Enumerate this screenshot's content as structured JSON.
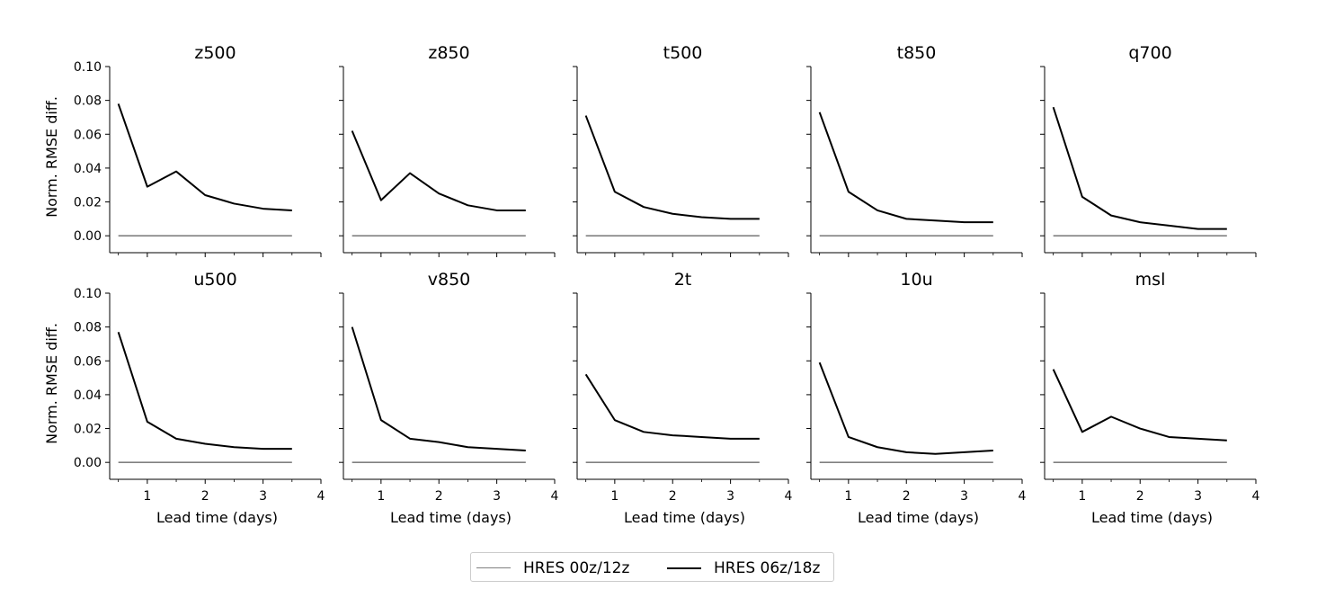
{
  "chart_data": {
    "type": "line",
    "layout": "2x5 small multiples",
    "shared_y_axis": true,
    "ylabel": "Norm. RMSE diff.",
    "xlabel": "Lead time (days)",
    "xlim": [
      0.35,
      4.0
    ],
    "ylim": [
      -0.01,
      0.1
    ],
    "xticks": [
      "1",
      "2",
      "3",
      "4"
    ],
    "yticks": [
      "0.00",
      "0.02",
      "0.04",
      "0.06",
      "0.08",
      "0.10"
    ],
    "x": [
      0.5,
      1.0,
      1.5,
      2.0,
      2.5,
      3.0,
      3.5
    ],
    "legend": {
      "placement": "bottom-center",
      "entries": [
        {
          "name": "HRES 00z/12z",
          "color": "#808080"
        },
        {
          "name": "HRES 06z/18z",
          "color": "#000000"
        }
      ]
    },
    "panels": [
      {
        "title": "z500",
        "series": [
          {
            "name": "HRES 00z/12z",
            "values": [
              0,
              0,
              0,
              0,
              0,
              0,
              0
            ]
          },
          {
            "name": "HRES 06z/18z",
            "values": [
              0.078,
              0.029,
              0.038,
              0.024,
              0.019,
              0.016,
              0.015
            ]
          }
        ]
      },
      {
        "title": "z850",
        "series": [
          {
            "name": "HRES 00z/12z",
            "values": [
              0,
              0,
              0,
              0,
              0,
              0,
              0
            ]
          },
          {
            "name": "HRES 06z/18z",
            "values": [
              0.062,
              0.021,
              0.037,
              0.025,
              0.018,
              0.015,
              0.015
            ]
          }
        ]
      },
      {
        "title": "t500",
        "series": [
          {
            "name": "HRES 00z/12z",
            "values": [
              0,
              0,
              0,
              0,
              0,
              0,
              0
            ]
          },
          {
            "name": "HRES 06z/18z",
            "values": [
              0.071,
              0.026,
              0.017,
              0.013,
              0.011,
              0.01,
              0.01
            ]
          }
        ]
      },
      {
        "title": "t850",
        "series": [
          {
            "name": "HRES 00z/12z",
            "values": [
              0,
              0,
              0,
              0,
              0,
              0,
              0
            ]
          },
          {
            "name": "HRES 06z/18z",
            "values": [
              0.073,
              0.026,
              0.015,
              0.01,
              0.009,
              0.008,
              0.008
            ]
          }
        ]
      },
      {
        "title": "q700",
        "series": [
          {
            "name": "HRES 00z/12z",
            "values": [
              0,
              0,
              0,
              0,
              0,
              0,
              0
            ]
          },
          {
            "name": "HRES 06z/18z",
            "values": [
              0.076,
              0.023,
              0.012,
              0.008,
              0.006,
              0.004,
              0.004
            ]
          }
        ]
      },
      {
        "title": "u500",
        "series": [
          {
            "name": "HRES 00z/12z",
            "values": [
              0,
              0,
              0,
              0,
              0,
              0,
              0
            ]
          },
          {
            "name": "HRES 06z/18z",
            "values": [
              0.077,
              0.024,
              0.014,
              0.011,
              0.009,
              0.008,
              0.008
            ]
          }
        ]
      },
      {
        "title": "v850",
        "series": [
          {
            "name": "HRES 00z/12z",
            "values": [
              0,
              0,
              0,
              0,
              0,
              0,
              0
            ]
          },
          {
            "name": "HRES 06z/18z",
            "values": [
              0.08,
              0.025,
              0.014,
              0.012,
              0.009,
              0.008,
              0.007
            ]
          }
        ]
      },
      {
        "title": "2t",
        "series": [
          {
            "name": "HRES 00z/12z",
            "values": [
              0,
              0,
              0,
              0,
              0,
              0,
              0
            ]
          },
          {
            "name": "HRES 06z/18z",
            "values": [
              0.052,
              0.025,
              0.018,
              0.016,
              0.015,
              0.014,
              0.014
            ]
          }
        ]
      },
      {
        "title": "10u",
        "series": [
          {
            "name": "HRES 00z/12z",
            "values": [
              0,
              0,
              0,
              0,
              0,
              0,
              0
            ]
          },
          {
            "name": "HRES 06z/18z",
            "values": [
              0.059,
              0.015,
              0.009,
              0.006,
              0.005,
              0.006,
              0.007
            ]
          }
        ]
      },
      {
        "title": "msl",
        "series": [
          {
            "name": "HRES 00z/12z",
            "values": [
              0,
              0,
              0,
              0,
              0,
              0,
              0
            ]
          },
          {
            "name": "HRES 06z/18z",
            "values": [
              0.055,
              0.018,
              0.027,
              0.02,
              0.015,
              0.014,
              0.013
            ]
          }
        ]
      }
    ]
  }
}
